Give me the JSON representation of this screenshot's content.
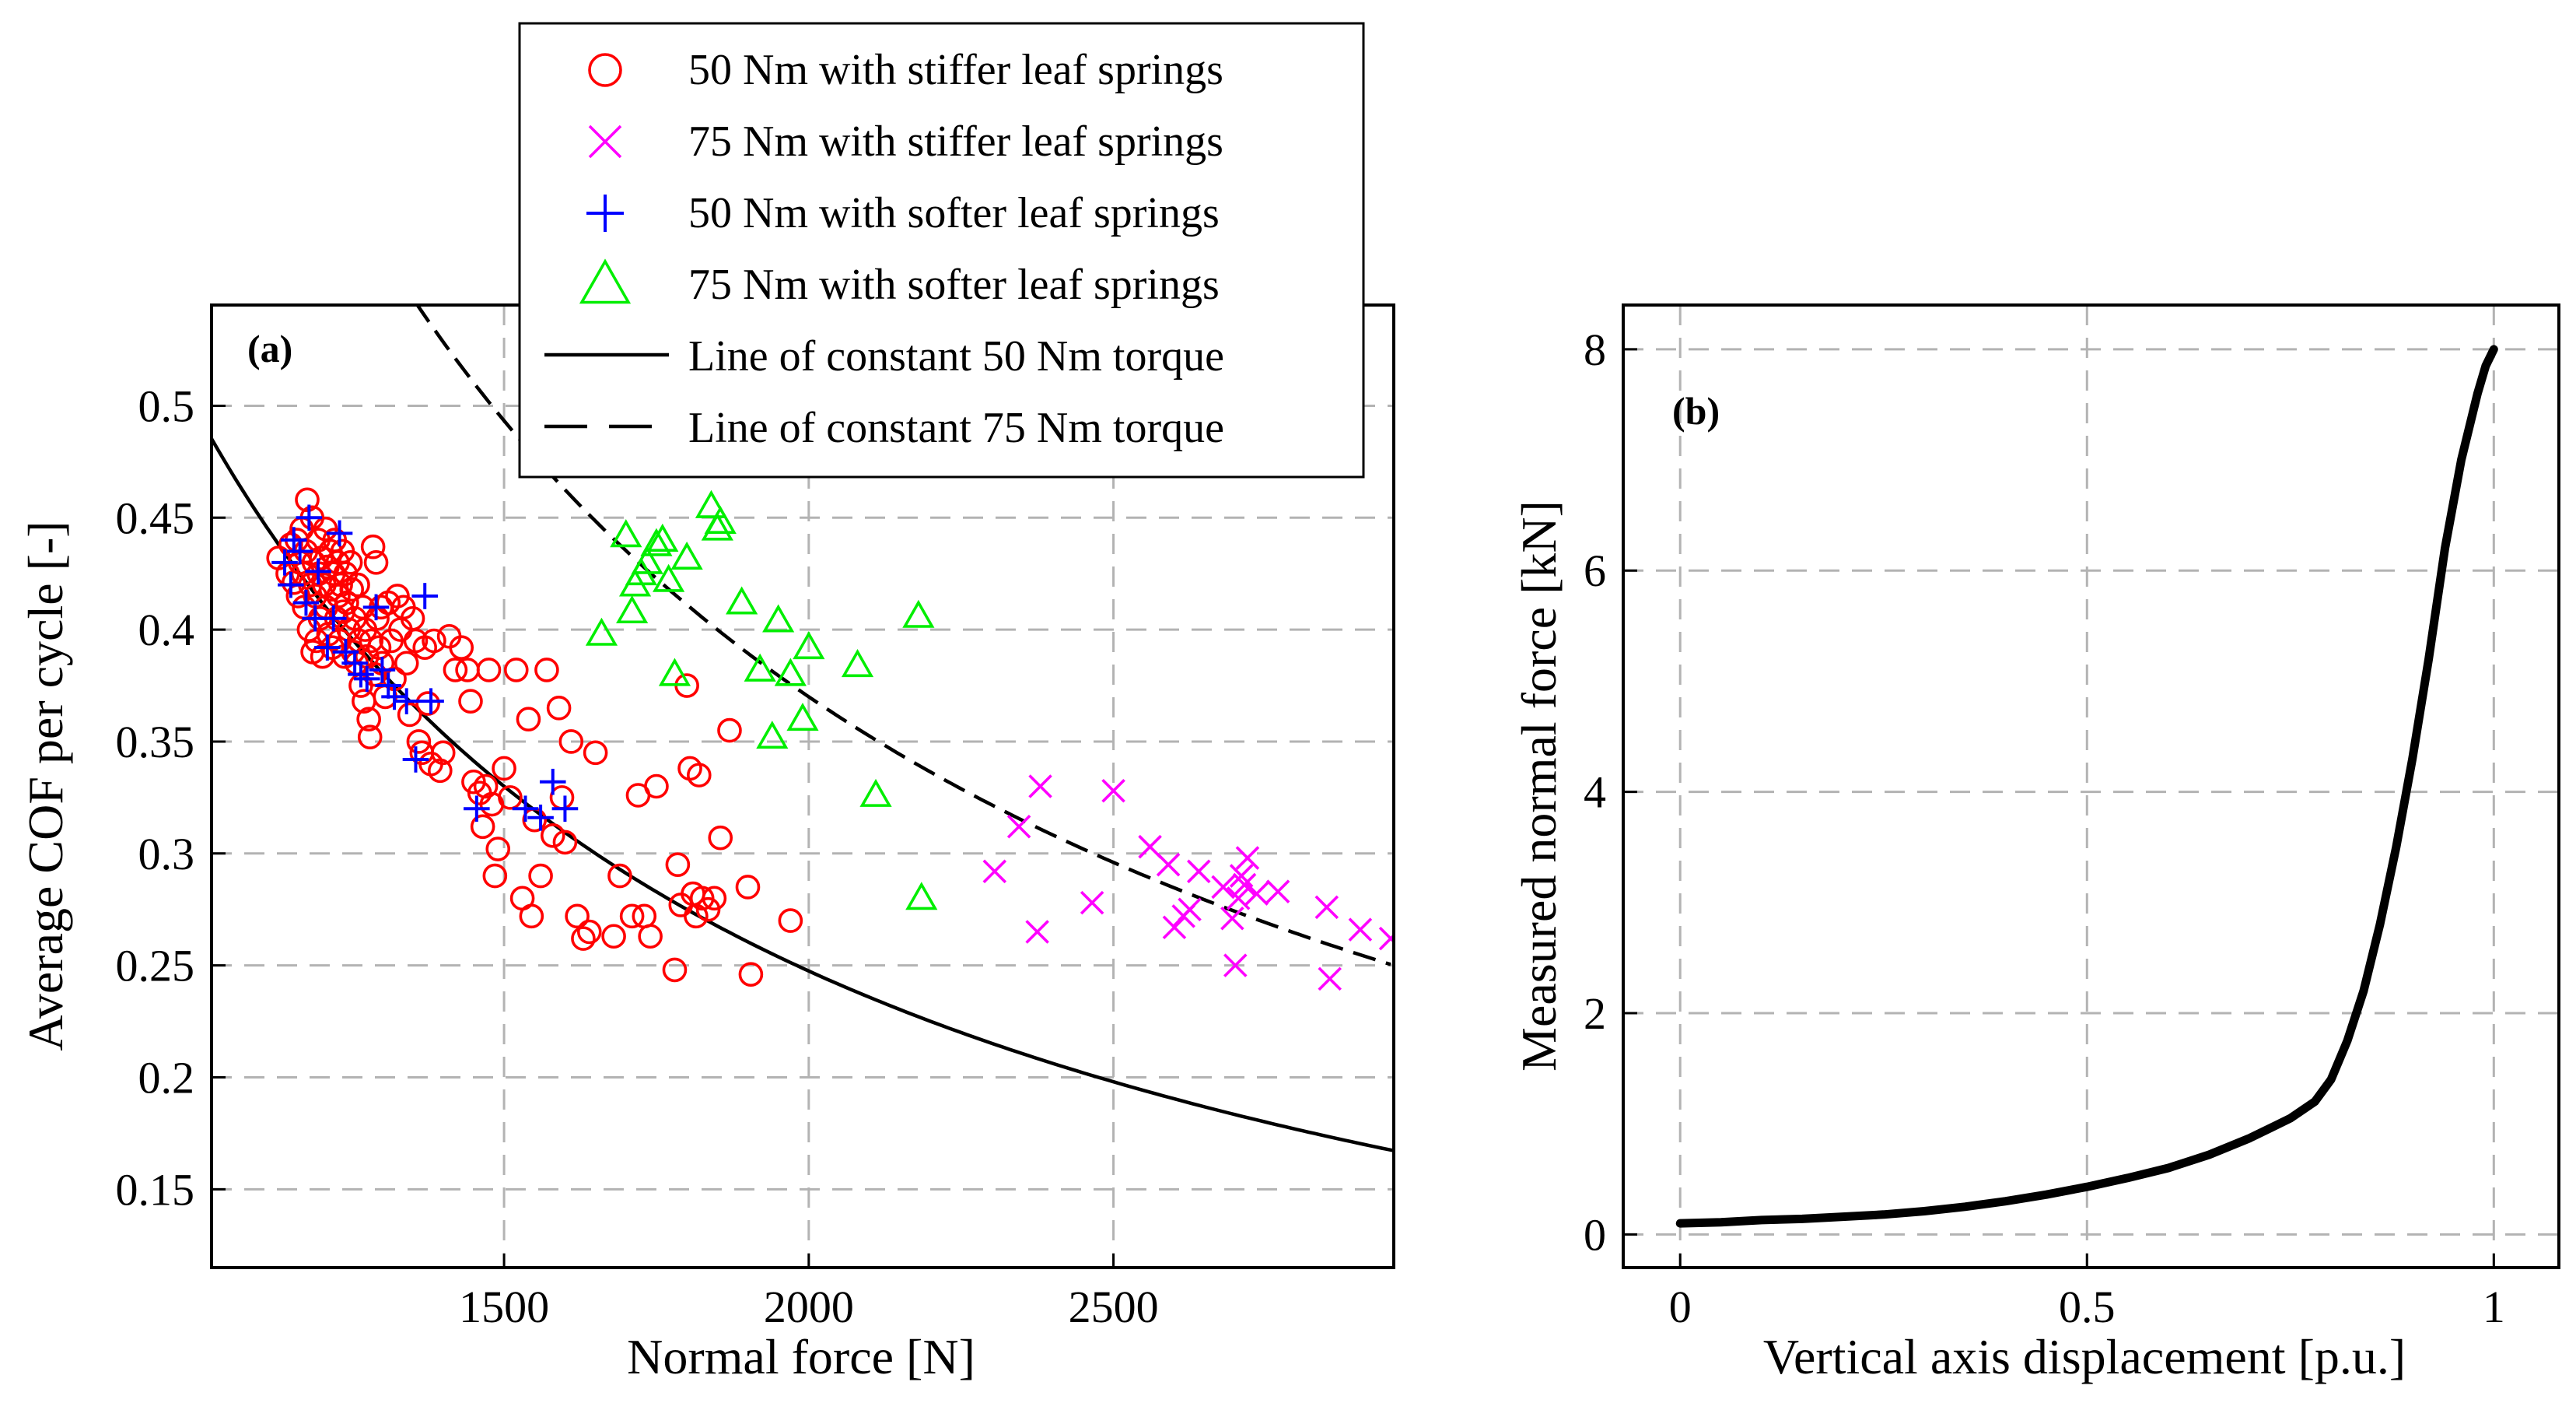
{
  "chart_data": [
    {
      "type": "scatter",
      "panel_label": "(a)",
      "xlabel": "Normal force [N]",
      "ylabel": "Average COF per cycle [-]",
      "xlim": [
        1020,
        2960
      ],
      "ylim": [
        0.115,
        0.545
      ],
      "xticks": [
        1500,
        2000,
        2500
      ],
      "yticks": [
        0.15,
        0.2,
        0.25,
        0.3,
        0.35,
        0.4,
        0.45,
        0.5
      ],
      "ytick_labels": [
        "0.15",
        "0.2",
        "0.25",
        "0.3",
        "0.35",
        "0.4",
        "0.45",
        "0.5"
      ],
      "grid": true,
      "legend": "top-right",
      "series": [
        {
          "name": "50 Nm with stiffer leaf springs",
          "marker": "circle",
          "color": "#ff0000",
          "points": [
            [
              1130,
              0.432
            ],
            [
              1145,
              0.425
            ],
            [
              1150,
              0.438
            ],
            [
              1155,
              0.421
            ],
            [
              1160,
              0.44
            ],
            [
              1162,
              0.415
            ],
            [
              1165,
              0.43
            ],
            [
              1168,
              0.445
            ],
            [
              1170,
              0.425
            ],
            [
              1172,
              0.41
            ],
            [
              1175,
              0.435
            ],
            [
              1177,
              0.458
            ],
            [
              1180,
              0.4
            ],
            [
              1182,
              0.42
            ],
            [
              1185,
              0.45
            ],
            [
              1186,
              0.39
            ],
            [
              1188,
              0.43
            ],
            [
              1190,
              0.415
            ],
            [
              1192,
              0.395
            ],
            [
              1195,
              0.44
            ],
            [
              1196,
              0.425
            ],
            [
              1198,
              0.405
            ],
            [
              1200,
              0.432
            ],
            [
              1202,
              0.388
            ],
            [
              1205,
              0.42
            ],
            [
              1207,
              0.445
            ],
            [
              1208,
              0.41
            ],
            [
              1210,
              0.428
            ],
            [
              1212,
              0.398
            ],
            [
              1215,
              0.435
            ],
            [
              1216,
              0.418
            ],
            [
              1218,
              0.392
            ],
            [
              1220,
              0.425
            ],
            [
              1222,
              0.44
            ],
            [
              1225,
              0.405
            ],
            [
              1227,
              0.43
            ],
            [
              1228,
              0.415
            ],
            [
              1230,
              0.395
            ],
            [
              1232,
              0.42
            ],
            [
              1235,
              0.435
            ],
            [
              1236,
              0.408
            ],
            [
              1238,
              0.388
            ],
            [
              1240,
              0.425
            ],
            [
              1242,
              0.412
            ],
            [
              1245,
              0.4
            ],
            [
              1248,
              0.43
            ],
            [
              1250,
              0.418
            ],
            [
              1252,
              0.39
            ],
            [
              1255,
              0.405
            ],
            [
              1258,
              0.385
            ],
            [
              1260,
              0.42
            ],
            [
              1262,
              0.395
            ],
            [
              1265,
              0.375
            ],
            [
              1268,
              0.41
            ],
            [
              1270,
              0.368
            ],
            [
              1272,
              0.4
            ],
            [
              1275,
              0.388
            ],
            [
              1278,
              0.36
            ],
            [
              1280,
              0.352
            ],
            [
              1282,
              0.395
            ],
            [
              1285,
              0.437
            ],
            [
              1288,
              0.38
            ],
            [
              1290,
              0.43
            ],
            [
              1292,
              0.405
            ],
            [
              1295,
              0.392
            ],
            [
              1298,
              0.41
            ],
            [
              1300,
              0.385
            ],
            [
              1305,
              0.37
            ],
            [
              1310,
              0.412
            ],
            [
              1315,
              0.395
            ],
            [
              1320,
              0.378
            ],
            [
              1325,
              0.415
            ],
            [
              1330,
              0.4
            ],
            [
              1335,
              0.41
            ],
            [
              1340,
              0.385
            ],
            [
              1345,
              0.362
            ],
            [
              1350,
              0.405
            ],
            [
              1355,
              0.395
            ],
            [
              1360,
              0.35
            ],
            [
              1365,
              0.345
            ],
            [
              1370,
              0.392
            ],
            [
              1375,
              0.367
            ],
            [
              1380,
              0.34
            ],
            [
              1385,
              0.395
            ],
            [
              1395,
              0.337
            ],
            [
              1400,
              0.345
            ],
            [
              1410,
              0.397
            ],
            [
              1420,
              0.382
            ],
            [
              1430,
              0.392
            ],
            [
              1440,
              0.382
            ],
            [
              1445,
              0.368
            ],
            [
              1450,
              0.332
            ],
            [
              1460,
              0.327
            ],
            [
              1465,
              0.312
            ],
            [
              1470,
              0.33
            ],
            [
              1475,
              0.382
            ],
            [
              1480,
              0.322
            ],
            [
              1485,
              0.29
            ],
            [
              1490,
              0.302
            ],
            [
              1500,
              0.338
            ],
            [
              1510,
              0.325
            ],
            [
              1520,
              0.382
            ],
            [
              1530,
              0.28
            ],
            [
              1540,
              0.36
            ],
            [
              1545,
              0.272
            ],
            [
              1550,
              0.315
            ],
            [
              1560,
              0.29
            ],
            [
              1570,
              0.382
            ],
            [
              1580,
              0.308
            ],
            [
              1590,
              0.365
            ],
            [
              1595,
              0.325
            ],
            [
              1600,
              0.305
            ],
            [
              1610,
              0.35
            ],
            [
              1620,
              0.272
            ],
            [
              1630,
              0.262
            ],
            [
              1640,
              0.265
            ],
            [
              1650,
              0.345
            ],
            [
              1680,
              0.263
            ],
            [
              1690,
              0.29
            ],
            [
              1710,
              0.272
            ],
            [
              1720,
              0.326
            ],
            [
              1730,
              0.272
            ],
            [
              1740,
              0.263
            ],
            [
              1750,
              0.33
            ],
            [
              1780,
              0.248
            ],
            [
              1785,
              0.295
            ],
            [
              1790,
              0.277
            ],
            [
              1800,
              0.375
            ],
            [
              1805,
              0.338
            ],
            [
              1810,
              0.282
            ],
            [
              1815,
              0.272
            ],
            [
              1820,
              0.335
            ],
            [
              1825,
              0.28
            ],
            [
              1835,
              0.275
            ],
            [
              1845,
              0.28
            ],
            [
              1855,
              0.307
            ],
            [
              1870,
              0.355
            ],
            [
              1900,
              0.285
            ],
            [
              1905,
              0.246
            ],
            [
              1970,
              0.27
            ]
          ]
        },
        {
          "name": "75 Nm with stiffer leaf springs",
          "marker": "x",
          "color": "#ff00ff",
          "points": [
            [
              2305,
              0.292
            ],
            [
              2345,
              0.312
            ],
            [
              2375,
              0.265
            ],
            [
              2380,
              0.33
            ],
            [
              2465,
              0.278
            ],
            [
              2500,
              0.328
            ],
            [
              2560,
              0.303
            ],
            [
              2590,
              0.295
            ],
            [
              2600,
              0.267
            ],
            [
              2615,
              0.272
            ],
            [
              2625,
              0.275
            ],
            [
              2640,
              0.292
            ],
            [
              2680,
              0.285
            ],
            [
              2695,
              0.271
            ],
            [
              2700,
              0.25
            ],
            [
              2705,
              0.28
            ],
            [
              2710,
              0.29
            ],
            [
              2715,
              0.286
            ],
            [
              2720,
              0.298
            ],
            [
              2735,
              0.282
            ],
            [
              2770,
              0.283
            ],
            [
              2850,
              0.276
            ],
            [
              2855,
              0.244
            ],
            [
              2905,
              0.266
            ],
            [
              2955,
              0.262
            ]
          ]
        },
        {
          "name": "50 Nm with softer leaf springs",
          "marker": "plus",
          "color": "#0000ff",
          "points": [
            [
              1140,
              0.43
            ],
            [
              1150,
              0.42
            ],
            [
              1155,
              0.44
            ],
            [
              1165,
              0.435
            ],
            [
              1175,
              0.412
            ],
            [
              1180,
              0.45
            ],
            [
              1190,
              0.405
            ],
            [
              1195,
              0.426
            ],
            [
              1210,
              0.392
            ],
            [
              1220,
              0.405
            ],
            [
              1230,
              0.443
            ],
            [
              1240,
              0.39
            ],
            [
              1255,
              0.385
            ],
            [
              1265,
              0.38
            ],
            [
              1275,
              0.378
            ],
            [
              1290,
              0.41
            ],
            [
              1300,
              0.382
            ],
            [
              1310,
              0.375
            ],
            [
              1320,
              0.37
            ],
            [
              1340,
              0.368
            ],
            [
              1355,
              0.342
            ],
            [
              1370,
              0.415
            ],
            [
              1380,
              0.368
            ],
            [
              1455,
              0.32
            ],
            [
              1535,
              0.32
            ],
            [
              1560,
              0.316
            ],
            [
              1580,
              0.332
            ],
            [
              1600,
              0.32
            ]
          ]
        },
        {
          "name": "75 Nm with softer leaf springs",
          "marker": "triangle",
          "color": "#00ee00",
          "points": [
            [
              1660,
              0.398
            ],
            [
              1700,
              0.442
            ],
            [
              1710,
              0.408
            ],
            [
              1715,
              0.42
            ],
            [
              1725,
              0.425
            ],
            [
              1735,
              0.43
            ],
            [
              1750,
              0.438
            ],
            [
              1760,
              0.44
            ],
            [
              1770,
              0.422
            ],
            [
              1780,
              0.38
            ],
            [
              1800,
              0.432
            ],
            [
              1840,
              0.455
            ],
            [
              1850,
              0.445
            ],
            [
              1855,
              0.448
            ],
            [
              1890,
              0.412
            ],
            [
              1920,
              0.382
            ],
            [
              1940,
              0.352
            ],
            [
              1950,
              0.404
            ],
            [
              1970,
              0.38
            ],
            [
              1990,
              0.36
            ],
            [
              2000,
              0.392
            ],
            [
              2080,
              0.384
            ],
            [
              2110,
              0.326
            ],
            [
              2180,
              0.406
            ],
            [
              2185,
              0.28
            ]
          ]
        },
        {
          "name": "Line of constant 50 Nm torque",
          "style": "solid",
          "color": "#000000",
          "function": "495/x",
          "x_range": [
            1000,
            2960
          ]
        },
        {
          "name": "Line of constant 75 Nm torque",
          "style": "dashed",
          "color": "#000000",
          "function": "740/x",
          "x_range": [
            1355,
            2960
          ]
        }
      ]
    },
    {
      "type": "line",
      "panel_label": "(b)",
      "xlabel": "Vertical axis displacement [p.u.]",
      "ylabel": "Measured normal force [kN]",
      "xlim": [
        -0.07,
        1.08
      ],
      "ylim": [
        -0.3,
        8.4
      ],
      "xticks": [
        0,
        0.5,
        1
      ],
      "xtick_labels": [
        "0",
        "0.5",
        "1"
      ],
      "yticks": [
        0,
        2,
        4,
        6,
        8
      ],
      "ytick_labels": [
        "0",
        "2",
        "4",
        "6",
        "8"
      ],
      "grid": true,
      "series": [
        {
          "name": "Measured normal force",
          "color": "#000000",
          "x": [
            0.0,
            0.05,
            0.1,
            0.15,
            0.2,
            0.25,
            0.3,
            0.35,
            0.4,
            0.45,
            0.5,
            0.55,
            0.6,
            0.65,
            0.7,
            0.75,
            0.78,
            0.8,
            0.82,
            0.84,
            0.86,
            0.88,
            0.9,
            0.92,
            0.94,
            0.96,
            0.98,
            0.99,
            1.0
          ],
          "y": [
            0.1,
            0.11,
            0.13,
            0.14,
            0.16,
            0.18,
            0.21,
            0.25,
            0.3,
            0.36,
            0.43,
            0.51,
            0.6,
            0.72,
            0.87,
            1.05,
            1.2,
            1.4,
            1.75,
            2.2,
            2.8,
            3.5,
            4.3,
            5.2,
            6.2,
            7.0,
            7.6,
            7.85,
            8.0
          ]
        }
      ]
    }
  ]
}
